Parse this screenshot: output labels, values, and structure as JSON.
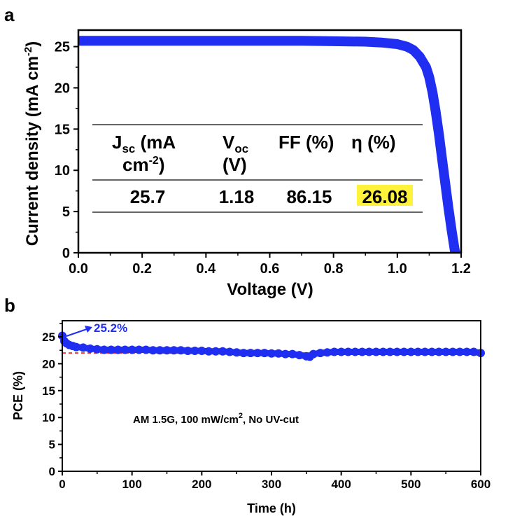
{
  "chart_data": [
    {
      "panel": "a",
      "type": "line",
      "xlabel": "Voltage (V)",
      "ylabel_main": "Current density (mA cm",
      "ylabel_sup": "-2",
      "ylabel_close": ")",
      "xlim": [
        0,
        1.2
      ],
      "ylim": [
        0,
        27
      ],
      "xticks": [
        "0.0",
        "0.2",
        "0.4",
        "0.6",
        "0.8",
        "1.0",
        "1.2"
      ],
      "yticks": [
        "0",
        "5",
        "10",
        "15",
        "20",
        "25"
      ],
      "series_color": "#1f2ef0",
      "x": [
        0,
        0.1,
        0.2,
        0.3,
        0.4,
        0.5,
        0.6,
        0.7,
        0.8,
        0.9,
        0.95,
        1.0,
        1.03,
        1.05,
        1.07,
        1.09,
        1.1,
        1.11,
        1.12,
        1.13,
        1.14,
        1.15,
        1.16,
        1.17,
        1.18,
        1.19
      ],
      "y": [
        25.7,
        25.7,
        25.7,
        25.7,
        25.7,
        25.7,
        25.7,
        25.7,
        25.65,
        25.6,
        25.5,
        25.3,
        25.0,
        24.6,
        23.8,
        22.5,
        21.3,
        19.5,
        17.2,
        14.5,
        11.5,
        8.5,
        5.5,
        2.8,
        0.3,
        -1.0
      ],
      "table": {
        "headers": [
          {
            "main": "J",
            "sub": "sc",
            "rest": " (mA"
          },
          {
            "main": "V",
            "sub": "oc",
            "rest": ""
          },
          {
            "main": "FF (%)",
            "sub": "",
            "rest": ""
          },
          {
            "main": "η (%)",
            "sub": "",
            "rest": ""
          }
        ],
        "header_line2": [
          {
            "main": "cm",
            "sup": "-2",
            "rest": ")"
          },
          {
            "main": "(V)",
            "sup": "",
            "rest": ""
          }
        ],
        "values": [
          "25.7",
          "1.18",
          "86.15",
          "26.08"
        ],
        "highlight_color": "#fff23a"
      }
    },
    {
      "panel": "b",
      "type": "scatter",
      "xlabel": "Time (h)",
      "ylabel": "PCE (%)",
      "xlim": [
        0,
        600
      ],
      "ylim": [
        0,
        28
      ],
      "xticks": [
        "0",
        "100",
        "200",
        "300",
        "400",
        "500",
        "600"
      ],
      "yticks": [
        "0",
        "5",
        "10",
        "15",
        "20",
        "25"
      ],
      "series_color": "#1f2ef0",
      "reference_line": {
        "y": 22,
        "color": "#e83c3c"
      },
      "callout": {
        "text": "25.2%",
        "x": 0,
        "y": 25.2
      },
      "annotation": {
        "main": "AM 1.5G, 100 mW/cm",
        "sup": "2",
        "rest": ", No UV-cut"
      },
      "x": [
        0,
        3,
        6,
        10,
        15,
        20,
        30,
        40,
        50,
        60,
        70,
        80,
        90,
        100,
        110,
        120,
        130,
        140,
        150,
        160,
        170,
        180,
        190,
        200,
        210,
        220,
        230,
        240,
        250,
        260,
        270,
        280,
        290,
        300,
        310,
        320,
        330,
        340,
        350,
        355,
        360,
        370,
        380,
        390,
        400,
        410,
        420,
        430,
        440,
        450,
        460,
        470,
        480,
        490,
        500,
        510,
        520,
        530,
        540,
        550,
        560,
        570,
        580,
        590,
        600
      ],
      "y": [
        25.2,
        24.2,
        23.8,
        23.5,
        23.3,
        23.1,
        23.0,
        22.8,
        22.7,
        22.6,
        22.6,
        22.6,
        22.6,
        22.6,
        22.6,
        22.6,
        22.5,
        22.5,
        22.5,
        22.5,
        22.5,
        22.4,
        22.4,
        22.4,
        22.3,
        22.3,
        22.3,
        22.2,
        22.1,
        22.0,
        22.0,
        22.0,
        22.0,
        21.9,
        21.9,
        21.8,
        21.8,
        21.6,
        21.4,
        21.3,
        21.8,
        22.0,
        22.1,
        22.2,
        22.2,
        22.2,
        22.2,
        22.2,
        22.2,
        22.2,
        22.2,
        22.2,
        22.2,
        22.2,
        22.2,
        22.2,
        22.2,
        22.2,
        22.2,
        22.2,
        22.2,
        22.2,
        22.2,
        22.2,
        22.0
      ]
    }
  ]
}
